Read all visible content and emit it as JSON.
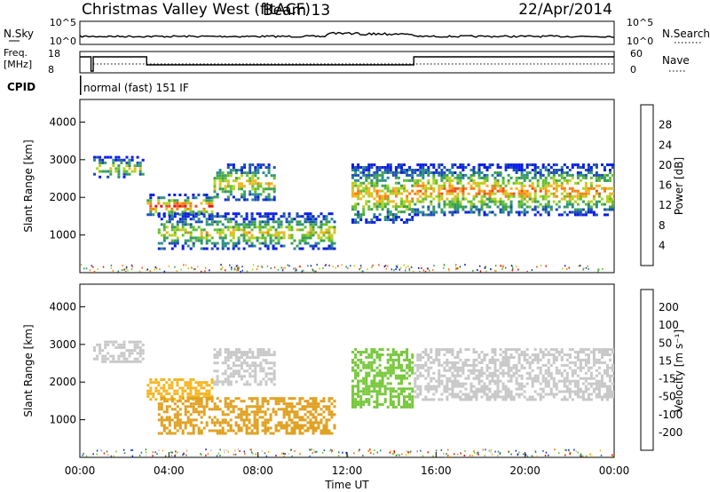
{
  "header": {
    "title": "Christmas Valley West (fitACF)",
    "beam": "Beam 13",
    "date": "22/Apr/2014"
  },
  "nsky_panel": {
    "label": "N.Sky",
    "left_ticks": [
      "10^5",
      "10^0"
    ],
    "right_ticks": [
      "10^5",
      "10^0"
    ],
    "right_label": "N.Search"
  },
  "freq_panel": {
    "label_line1": "Freq.",
    "label_line2": "[MHz]",
    "left_ticks": [
      "18",
      "8"
    ],
    "right_ticks": [
      "60",
      "0"
    ],
    "right_label": "Nave"
  },
  "cpid": {
    "label": "CPID",
    "text": "normal (fast) 151 IF"
  },
  "chart_data": [
    {
      "type": "heatmap",
      "name": "Power",
      "ylabel": "Slant Range [km]",
      "yticks": [
        "4000",
        "3000",
        "2000",
        "1000"
      ],
      "ylim": [
        0,
        4600
      ],
      "colorbar_label": "Power [dB]",
      "colorbar_ticks": [
        "28",
        "24",
        "20",
        "16",
        "12",
        "8",
        "4"
      ],
      "colorbar_colors": [
        "#0a1ee6",
        "#1e50b4",
        "#2d8c8c",
        "#3ca050",
        "#64be32",
        "#b4d21e",
        "#f5b41e",
        "#f58214",
        "#f0501e",
        "#e61414"
      ],
      "echo_regions": [
        {
          "t0": 0.6,
          "t1": 2.9,
          "r0": 2500,
          "r1": 3100,
          "level": 0.55
        },
        {
          "t0": 3.0,
          "t1": 6.0,
          "r0": 1500,
          "r1": 2100,
          "level": 0.9
        },
        {
          "t0": 6.0,
          "t1": 8.8,
          "r0": 1900,
          "r1": 2900,
          "level": 0.65
        },
        {
          "t0": 3.5,
          "t1": 11.5,
          "r0": 600,
          "r1": 1600,
          "level": 0.6
        },
        {
          "t0": 12.2,
          "t1": 15.0,
          "r0": 1300,
          "r1": 2900,
          "level": 0.7
        },
        {
          "t0": 15.0,
          "t1": 24.0,
          "r0": 1500,
          "r1": 2900,
          "level": 0.75
        }
      ]
    },
    {
      "type": "heatmap",
      "name": "Velocity",
      "ylabel": "Slant Range [km]",
      "yticks": [
        "4000",
        "3000",
        "2000",
        "1000"
      ],
      "ylim": [
        0,
        4600
      ],
      "colorbar_label": "Velocity [m s⁻¹]",
      "colorbar_ticks": [
        "200",
        "100",
        "50",
        "15",
        "-15",
        "-50",
        "-100",
        "-200"
      ],
      "colorbar_colors": [
        "#1432c8",
        "#2864c8",
        "#3c8c50",
        "#78c83c",
        "#c8c8c8",
        "#f5b41e",
        "#f07814",
        "#e61414"
      ],
      "echo_regions": [
        {
          "t0": 0.6,
          "t1": 2.9,
          "r0": 2500,
          "r1": 3100,
          "color": "#c8c8c8"
        },
        {
          "t0": 3.0,
          "t1": 6.0,
          "r0": 1500,
          "r1": 2100,
          "color": "#f5b41e"
        },
        {
          "t0": 6.0,
          "t1": 8.8,
          "r0": 1900,
          "r1": 2900,
          "color": "#c8c8c8"
        },
        {
          "t0": 3.5,
          "t1": 11.5,
          "r0": 600,
          "r1": 1600,
          "color": "#e0a020"
        },
        {
          "t0": 12.2,
          "t1": 15.0,
          "r0": 1300,
          "r1": 2900,
          "color": "#78c83c"
        },
        {
          "t0": 15.0,
          "t1": 24.0,
          "r0": 1500,
          "r1": 2900,
          "color": "#c8c8c8"
        }
      ]
    }
  ],
  "x_axis": {
    "label": "Time UT",
    "ticks": [
      "00:00",
      "04:00",
      "08:00",
      "12:00",
      "16:00",
      "20:00",
      "00:00"
    ]
  }
}
